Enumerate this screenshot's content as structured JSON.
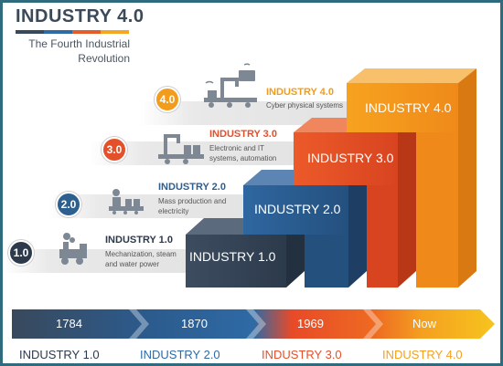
{
  "header": {
    "title": "INDUSTRY 4.0",
    "subtitle_line1": "The Fourth Industrial",
    "subtitle_line2": "Revolution",
    "bar_colors": [
      "#39495c",
      "#2e6aa5",
      "#e85a2a",
      "#f5a623"
    ]
  },
  "colors": {
    "industry1": "#3a4a5c",
    "industry2": "#2d5f8f",
    "industry3": "#e4502a",
    "industry4": "#f29b1d"
  },
  "levels": [
    {
      "badge": "1.0",
      "title": "INDUSTRY 1.0",
      "desc_line1": "Mechanization, steam",
      "desc_line2": "and water power",
      "step_label": "INDUSTRY 1.0",
      "icon": "steam-engine-icon"
    },
    {
      "badge": "2.0",
      "title": "INDUSTRY 2.0",
      "desc_line1": "Mass production and",
      "desc_line2": "electricity",
      "step_label": "INDUSTRY 2.0",
      "icon": "assembly-line-icon"
    },
    {
      "badge": "3.0",
      "title": "INDUSTRY 3.0",
      "desc_line1": "Electronic and IT",
      "desc_line2": "systems, automation",
      "step_label": "INDUSTRY 3.0",
      "icon": "robot-arm-icon"
    },
    {
      "badge": "4.0",
      "title": "INDUSTRY 4.0",
      "desc_line1": "Cyber physical systems",
      "desc_line2": "",
      "step_label": "INDUSTRY 4.0",
      "icon": "connected-factory-icon"
    }
  ],
  "timeline": {
    "labels": [
      "1784",
      "1870",
      "1969",
      "Now"
    ]
  },
  "legend": [
    "INDUSTRY 1.0",
    "INDUSTRY 2.0",
    "INDUSTRY 3.0",
    "INDUSTRY 4.0"
  ]
}
